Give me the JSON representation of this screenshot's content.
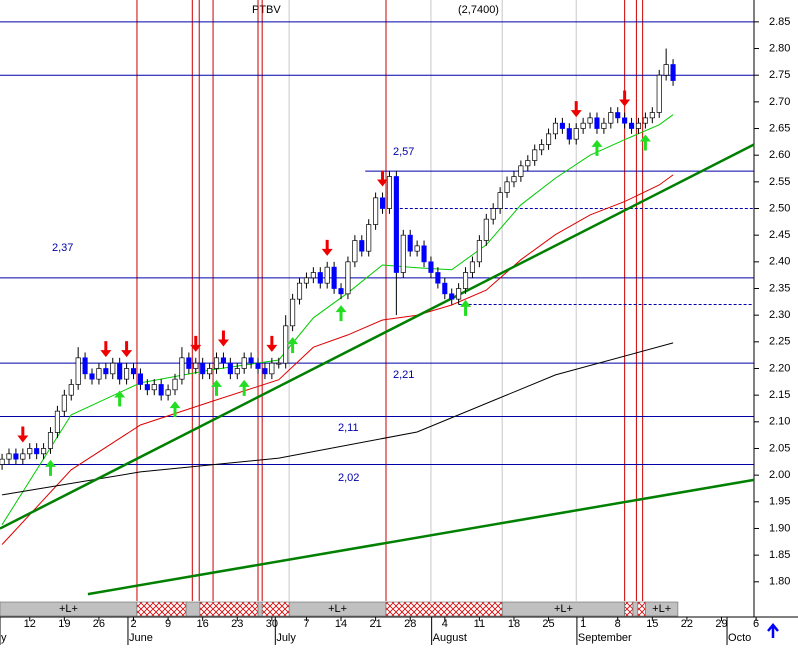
{
  "chart_data": {
    "type": "candlestick",
    "title": "PTBV",
    "subtitle": "(2,7400)",
    "xlim": [
      -0.3,
      108.7
    ],
    "ylim": [
      1.764,
      2.891
    ],
    "xticks": [
      {
        "value": 4,
        "label": "12"
      },
      {
        "value": 9,
        "label": "19"
      },
      {
        "value": 14,
        "label": "26"
      },
      {
        "value": 19,
        "label": "2"
      },
      {
        "value": 24,
        "label": "9"
      },
      {
        "value": 29,
        "label": "16"
      },
      {
        "value": 34,
        "label": "23"
      },
      {
        "value": 39,
        "label": "30"
      },
      {
        "value": 44,
        "label": "7"
      },
      {
        "value": 49,
        "label": "14"
      },
      {
        "value": 54,
        "label": "21"
      },
      {
        "value": 59,
        "label": "28"
      },
      {
        "value": 64,
        "label": "4"
      },
      {
        "value": 69,
        "label": "11"
      },
      {
        "value": 74,
        "label": "18"
      },
      {
        "value": 79,
        "label": "25"
      },
      {
        "value": 84,
        "label": "1"
      },
      {
        "value": 89,
        "label": "8"
      },
      {
        "value": 94,
        "label": "15"
      },
      {
        "value": 99,
        "label": "22"
      },
      {
        "value": 104,
        "label": "29"
      },
      {
        "value": 109,
        "label": "6"
      }
    ],
    "month_labels": [
      {
        "label": "y",
        "x": -0.3
      },
      {
        "label": "June",
        "x": 18.2
      },
      {
        "label": "July",
        "x": 39.5
      },
      {
        "label": "August",
        "x": 62.1
      },
      {
        "label": "September",
        "x": 83.1
      },
      {
        "label": "Octo",
        "x": 104.8
      }
    ],
    "yticks": [
      {
        "value": 1.8,
        "label": "1.80"
      },
      {
        "value": 1.85,
        "label": "1.85"
      },
      {
        "value": 1.9,
        "label": "1.90"
      },
      {
        "value": 1.95,
        "label": "1.95"
      },
      {
        "value": 2.0,
        "label": "2.00"
      },
      {
        "value": 2.05,
        "label": "2.05"
      },
      {
        "value": 2.1,
        "label": "2.10"
      },
      {
        "value": 2.15,
        "label": "2.15"
      },
      {
        "value": 2.2,
        "label": "2.20"
      },
      {
        "value": 2.25,
        "label": "2.25"
      },
      {
        "value": 2.3,
        "label": "2.30"
      },
      {
        "value": 2.35,
        "label": "2.35"
      },
      {
        "value": 2.4,
        "label": "2.40"
      },
      {
        "value": 2.45,
        "label": "2.45"
      },
      {
        "value": 2.5,
        "label": "2.50"
      },
      {
        "value": 2.55,
        "label": "2.55"
      },
      {
        "value": 2.6,
        "label": "2.60"
      },
      {
        "value": 2.65,
        "label": "2.65"
      },
      {
        "value": 2.7,
        "label": "2.70"
      },
      {
        "value": 2.75,
        "label": "2.75"
      },
      {
        "value": 2.8,
        "label": "2.80"
      },
      {
        "value": 2.85,
        "label": "2.85"
      }
    ],
    "candles": {
      "up_color": "#ffffff",
      "down_color": "#0000ff",
      "open": [
        2.02,
        2.03,
        2.04,
        2.03,
        2.04,
        2.05,
        2.04,
        2.05,
        2.08,
        2.12,
        2.15,
        2.17,
        2.22,
        2.19,
        2.18,
        2.2,
        2.19,
        2.21,
        2.18,
        2.2,
        2.19,
        2.17,
        2.16,
        2.17,
        2.15,
        2.16,
        2.18,
        2.22,
        2.2,
        2.21,
        2.19,
        2.2,
        2.22,
        2.21,
        2.19,
        2.2,
        2.22,
        2.21,
        2.2,
        2.19,
        2.21,
        2.21,
        2.28,
        2.33,
        2.36,
        2.37,
        2.38,
        2.36,
        2.39,
        2.35,
        2.34,
        2.4,
        2.44,
        2.42,
        2.47,
        2.52,
        2.5,
        2.56,
        2.38,
        2.45,
        2.42,
        2.43,
        2.4,
        2.38,
        2.36,
        2.34,
        2.33,
        2.35,
        2.38,
        2.4,
        2.44,
        2.48,
        2.5,
        2.53,
        2.55,
        2.56,
        2.58,
        2.59,
        2.61,
        2.62,
        2.64,
        2.66,
        2.65,
        2.63,
        2.65,
        2.66,
        2.67,
        2.65,
        2.66,
        2.68,
        2.67,
        2.66,
        2.65,
        2.66,
        2.67,
        2.68,
        2.75,
        2.77
      ],
      "high": [
        2.04,
        2.05,
        2.05,
        2.05,
        2.06,
        2.06,
        2.06,
        2.09,
        2.13,
        2.16,
        2.18,
        2.24,
        2.23,
        2.2,
        2.21,
        2.21,
        2.22,
        2.22,
        2.21,
        2.21,
        2.2,
        2.18,
        2.18,
        2.18,
        2.17,
        2.19,
        2.24,
        2.23,
        2.22,
        2.22,
        2.21,
        2.23,
        2.23,
        2.22,
        2.21,
        2.23,
        2.23,
        2.22,
        2.21,
        2.22,
        2.22,
        2.3,
        2.34,
        2.37,
        2.38,
        2.39,
        2.39,
        2.4,
        2.4,
        2.36,
        2.41,
        2.45,
        2.45,
        2.48,
        2.53,
        2.53,
        2.57,
        2.57,
        2.46,
        2.46,
        2.44,
        2.44,
        2.41,
        2.39,
        2.37,
        2.35,
        2.36,
        2.39,
        2.41,
        2.45,
        2.49,
        2.51,
        2.54,
        2.56,
        2.57,
        2.59,
        2.6,
        2.62,
        2.63,
        2.65,
        2.67,
        2.67,
        2.66,
        2.66,
        2.67,
        2.68,
        2.68,
        2.67,
        2.69,
        2.69,
        2.68,
        2.67,
        2.67,
        2.68,
        2.69,
        2.76,
        2.8,
        2.78
      ],
      "low": [
        2.01,
        2.02,
        2.02,
        2.02,
        2.03,
        2.03,
        2.03,
        2.04,
        2.07,
        2.11,
        2.14,
        2.16,
        2.18,
        2.17,
        2.17,
        2.18,
        2.18,
        2.17,
        2.17,
        2.18,
        2.16,
        2.15,
        2.15,
        2.14,
        2.14,
        2.15,
        2.17,
        2.19,
        2.19,
        2.18,
        2.18,
        2.19,
        2.2,
        2.18,
        2.18,
        2.19,
        2.2,
        2.19,
        2.18,
        2.18,
        2.2,
        2.2,
        2.27,
        2.32,
        2.35,
        2.36,
        2.35,
        2.35,
        2.34,
        2.33,
        2.33,
        2.39,
        2.41,
        2.41,
        2.46,
        2.49,
        2.49,
        2.3,
        2.37,
        2.41,
        2.41,
        2.39,
        2.37,
        2.35,
        2.33,
        2.32,
        2.32,
        2.34,
        2.37,
        2.39,
        2.43,
        2.47,
        2.49,
        2.52,
        2.54,
        2.55,
        2.57,
        2.58,
        2.6,
        2.61,
        2.63,
        2.64,
        2.62,
        2.62,
        2.64,
        2.65,
        2.64,
        2.64,
        2.65,
        2.66,
        2.65,
        2.64,
        2.64,
        2.65,
        2.66,
        2.67,
        2.74,
        2.73
      ],
      "close": [
        2.03,
        2.04,
        2.03,
        2.04,
        2.05,
        2.04,
        2.05,
        2.08,
        2.12,
        2.15,
        2.17,
        2.22,
        2.19,
        2.18,
        2.2,
        2.19,
        2.21,
        2.18,
        2.2,
        2.19,
        2.17,
        2.16,
        2.17,
        2.15,
        2.16,
        2.18,
        2.22,
        2.2,
        2.21,
        2.19,
        2.2,
        2.22,
        2.21,
        2.19,
        2.2,
        2.22,
        2.21,
        2.2,
        2.19,
        2.21,
        2.21,
        2.28,
        2.33,
        2.36,
        2.37,
        2.38,
        2.36,
        2.39,
        2.35,
        2.34,
        2.4,
        2.44,
        2.42,
        2.47,
        2.52,
        2.5,
        2.56,
        2.38,
        2.45,
        2.42,
        2.43,
        2.4,
        2.38,
        2.36,
        2.34,
        2.33,
        2.35,
        2.38,
        2.4,
        2.44,
        2.48,
        2.5,
        2.53,
        2.55,
        2.56,
        2.58,
        2.59,
        2.61,
        2.62,
        2.64,
        2.66,
        2.65,
        2.63,
        2.65,
        2.66,
        2.67,
        2.65,
        2.66,
        2.68,
        2.67,
        2.66,
        2.65,
        2.66,
        2.67,
        2.68,
        2.75,
        2.77,
        2.74
      ]
    },
    "moving_averages": [
      {
        "color": "#00cc00",
        "x": [
          0,
          10,
          20,
          30,
          40,
          45,
          50,
          55,
          60,
          65,
          70,
          75,
          80,
          85,
          90,
          95,
          97
        ],
        "values": [
          1.907,
          2.113,
          2.173,
          2.197,
          2.216,
          2.295,
          2.342,
          2.394,
          2.389,
          2.385,
          2.432,
          2.507,
          2.557,
          2.6,
          2.629,
          2.657,
          2.676
        ]
      },
      {
        "color": "#dd0000",
        "x": [
          0,
          10,
          20,
          30,
          40,
          45,
          50,
          55,
          60,
          65,
          70,
          75,
          80,
          85,
          90,
          95,
          97
        ],
        "values": [
          1.87,
          2.01,
          2.094,
          2.137,
          2.179,
          2.24,
          2.263,
          2.291,
          2.3,
          2.319,
          2.347,
          2.404,
          2.451,
          2.488,
          2.513,
          2.544,
          2.563
        ]
      },
      {
        "color": "#000000",
        "x": [
          0,
          20,
          40,
          60,
          80,
          97
        ],
        "values": [
          1.963,
          2.006,
          2.032,
          2.081,
          2.188,
          2.248
        ]
      }
    ],
    "trendlines": [
      {
        "color": "#008000",
        "x": [
          -0.3,
          108.7
        ],
        "values": [
          1.9,
          2.62
        ]
      },
      {
        "color": "#008000",
        "x": [
          12.4,
          108.7
        ],
        "values": [
          1.777,
          1.991
        ]
      }
    ],
    "levels": [
      {
        "value": 2.85
      },
      {
        "value": 2.75
      },
      {
        "value": 2.57,
        "from": 52.5
      },
      {
        "value": 2.5,
        "from": 57.5,
        "dashed": true
      },
      {
        "value": 2.37
      },
      {
        "value": 2.32,
        "from": 66,
        "dashed": true
      },
      {
        "value": 2.21
      },
      {
        "value": 2.11
      },
      {
        "value": 2.02
      }
    ],
    "level_labels": [
      "2,57",
      "2,37",
      "2,21",
      "2,11",
      "2,02"
    ],
    "event_lines": [
      19.5,
      27.5,
      28.5,
      30.5,
      37,
      37.6,
      55.5,
      90,
      91.7,
      92.6
    ],
    "guide_lines": [
      41.5,
      62,
      72.3,
      83
    ],
    "sell_signals": [
      3,
      15,
      18,
      28,
      32,
      39,
      47,
      55,
      83,
      90
    ],
    "buy_signals": [
      7,
      17,
      25,
      31,
      35,
      42,
      49,
      67,
      86,
      93
    ],
    "band_segments": [
      {
        "x": [
          -0.3,
          19.5
        ],
        "label": "+L+"
      },
      {
        "x": [
          19.5,
          26.6
        ],
        "hatched": true
      },
      {
        "x": [
          26.6,
          28.6
        ]
      },
      {
        "x": [
          28.6,
          37
        ],
        "hatched": true
      },
      {
        "x": [
          37,
          37.6
        ]
      },
      {
        "x": [
          37.6,
          41.5
        ],
        "hatched": true
      },
      {
        "x": [
          41.5,
          55.5
        ],
        "label": "+L+"
      },
      {
        "x": [
          55.5,
          72.3
        ],
        "hatched": true
      },
      {
        "x": [
          72.3,
          90
        ],
        "label": "+L+"
      },
      {
        "x": [
          90,
          91.2
        ],
        "hatched": true
      },
      {
        "x": [
          91.2,
          91.9
        ]
      },
      {
        "x": [
          91.9,
          93
        ],
        "hatched": true
      },
      {
        "x": [
          93,
          97.7
        ],
        "label": "+L+"
      }
    ]
  }
}
